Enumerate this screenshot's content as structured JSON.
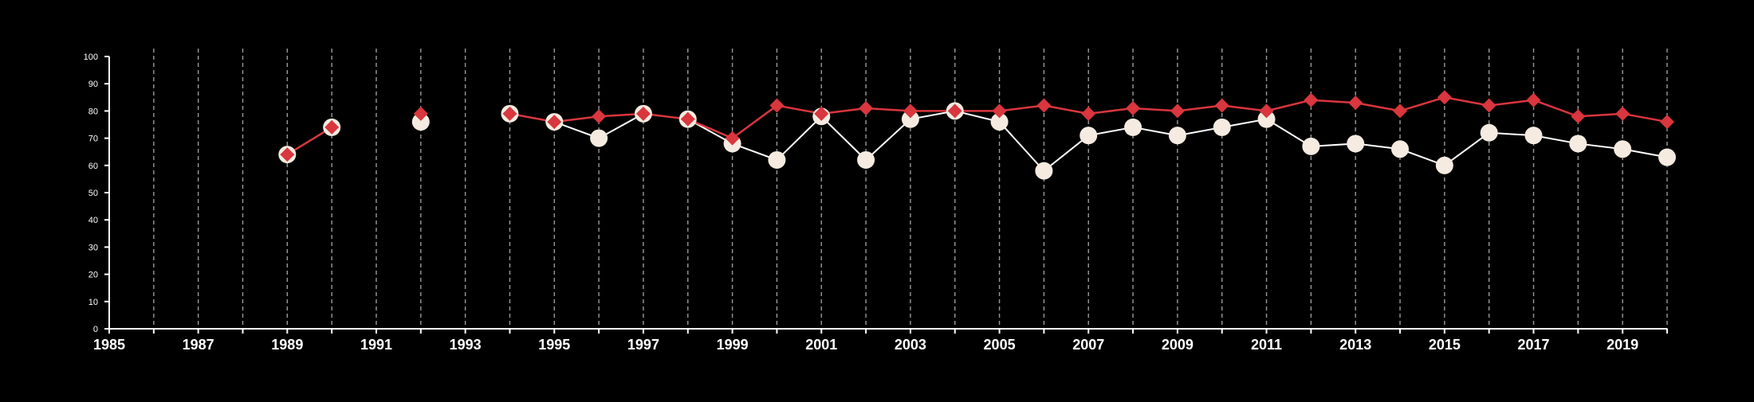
{
  "colors": {
    "background": "#000000",
    "axis": "#ffffff",
    "grid": "#9a9a9a",
    "series_a_marker": "#f5ebe0",
    "series_a_line": "#ffffff",
    "series_b": "#d9363e"
  },
  "chart_data": {
    "type": "line",
    "title": "",
    "xlabel": "",
    "ylabel": "",
    "xlim": [
      1985,
      2020
    ],
    "ylim": [
      0,
      100
    ],
    "y_ticks": [
      0,
      10,
      20,
      30,
      40,
      50,
      60,
      70,
      80,
      90,
      100
    ],
    "x_tick_labels": [
      1985,
      1987,
      1989,
      1991,
      1993,
      1995,
      1997,
      1999,
      2001,
      2003,
      2005,
      2007,
      2009,
      2011,
      2013,
      2015,
      2017,
      2019
    ],
    "x_gridlines": [
      1986,
      1987,
      1988,
      1989,
      1990,
      1991,
      1992,
      1993,
      1994,
      1995,
      1996,
      1997,
      1998,
      1999,
      2000,
      2001,
      2002,
      2003,
      2004,
      2005,
      2006,
      2007,
      2008,
      2009,
      2010,
      2011,
      2012,
      2013,
      2014,
      2015,
      2016,
      2017,
      2018,
      2019,
      2020
    ],
    "grid": "vertical-dashed",
    "legend": "none",
    "x": [
      1989,
      1990,
      1992,
      1994,
      1995,
      1996,
      1997,
      1998,
      1999,
      2000,
      2001,
      2002,
      2003,
      2004,
      2005,
      2006,
      2007,
      2008,
      2009,
      2010,
      2011,
      2012,
      2013,
      2014,
      2015,
      2016,
      2017,
      2018,
      2019,
      2020
    ],
    "series": [
      {
        "marker": "circle",
        "values": [
          64,
          74,
          76,
          79,
          76,
          70,
          79,
          77,
          68,
          62,
          78,
          62,
          77,
          80,
          76,
          58,
          71,
          74,
          71,
          74,
          77,
          67,
          68,
          66,
          60,
          72,
          71,
          68,
          66,
          63
        ]
      },
      {
        "marker": "diamond",
        "values": [
          64,
          74,
          79,
          79,
          76,
          78,
          79,
          77,
          70,
          82,
          79,
          81,
          80,
          80,
          80,
          82,
          79,
          81,
          80,
          82,
          80,
          84,
          83,
          80,
          85,
          82,
          84,
          78,
          79,
          76
        ]
      }
    ],
    "line_segments": [
      [
        1989,
        1990
      ],
      [
        1994,
        2020
      ]
    ]
  }
}
